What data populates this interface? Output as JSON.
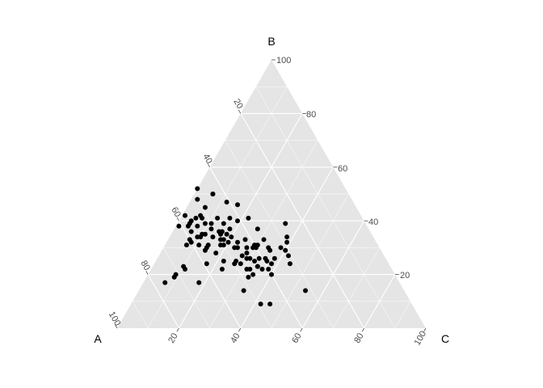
{
  "chart_data": {
    "type": "scatter",
    "subtype": "ternary",
    "axes": {
      "A": {
        "label": "A"
      },
      "B": {
        "label": "B"
      },
      "C": {
        "label": "C"
      }
    },
    "ticks": [
      20,
      40,
      60,
      80,
      100
    ],
    "grid_step": 10,
    "grid": true,
    "colors": {
      "panel": "#e5e5e5",
      "grid": "#ffffff",
      "point": "#000000"
    },
    "points": [
      [
        76,
        17,
        7
      ],
      [
        58,
        31,
        11
      ],
      [
        62,
        31,
        7
      ],
      [
        48,
        52,
        0
      ],
      [
        50,
        48,
        2
      ],
      [
        44,
        50,
        6
      ],
      [
        44,
        50,
        6
      ],
      [
        57,
        39,
        4
      ],
      [
        56,
        40,
        4
      ],
      [
        49,
        45,
        6
      ],
      [
        52,
        41,
        7
      ],
      [
        41,
        47,
        12
      ],
      [
        38,
        46,
        16
      ],
      [
        60,
        33,
        7
      ],
      [
        60,
        32,
        8
      ],
      [
        57,
        34,
        9
      ],
      [
        56,
        34,
        10
      ],
      [
        55,
        35,
        10
      ],
      [
        54,
        35,
        11
      ],
      [
        52,
        34,
        14
      ],
      [
        49,
        36,
        15
      ],
      [
        48,
        36,
        16
      ],
      [
        49,
        35,
        16
      ],
      [
        47,
        35,
        18
      ],
      [
        46,
        34,
        20
      ],
      [
        50,
        33,
        17
      ],
      [
        49,
        33,
        18
      ],
      [
        48,
        32,
        20
      ],
      [
        51,
        31,
        18
      ],
      [
        55,
        31,
        14
      ],
      [
        56,
        30,
        14
      ],
      [
        57,
        29,
        14
      ],
      [
        46,
        30,
        24
      ],
      [
        43,
        30,
        27
      ],
      [
        41,
        30,
        29
      ],
      [
        40,
        30,
        30
      ],
      [
        40,
        31,
        29
      ],
      [
        39,
        31,
        30
      ],
      [
        36,
        30,
        34
      ],
      [
        46,
        27,
        27
      ],
      [
        45,
        26,
        29
      ],
      [
        41,
        26,
        33
      ],
      [
        39,
        26,
        35
      ],
      [
        36,
        26,
        38
      ],
      [
        31,
        27,
        42
      ],
      [
        31,
        29,
        40
      ],
      [
        32,
        30,
        38
      ],
      [
        29,
        32,
        39
      ],
      [
        28,
        34,
        38
      ],
      [
        26,
        39,
        35
      ],
      [
        42,
        33,
        25
      ],
      [
        36,
        37,
        27
      ],
      [
        41,
        40,
        19
      ],
      [
        43,
        41,
        16
      ],
      [
        47,
        41,
        12
      ],
      [
        54,
        41,
        5
      ],
      [
        58,
        38,
        4
      ],
      [
        58,
        36,
        6
      ],
      [
        52,
        39,
        9
      ],
      [
        50,
        39,
        11
      ],
      [
        46,
        39,
        15
      ],
      [
        37,
        41,
        22
      ],
      [
        45,
        37,
        18
      ],
      [
        45,
        32,
        23
      ],
      [
        59,
        24,
        17
      ],
      [
        53,
        25,
        22
      ],
      [
        50,
        24,
        26
      ],
      [
        48,
        24,
        28
      ],
      [
        46,
        22,
        32
      ],
      [
        42,
        22,
        36
      ],
      [
        47,
        22,
        31
      ],
      [
        55,
        22,
        23
      ],
      [
        48,
        19,
        33
      ],
      [
        46,
        20,
        34
      ],
      [
        43,
        23,
        34
      ],
      [
        40,
        20,
        40
      ],
      [
        40,
        22,
        38
      ],
      [
        38,
        24,
        38
      ],
      [
        36,
        29,
        35
      ],
      [
        36,
        33,
        31
      ],
      [
        55,
        38,
        7
      ],
      [
        51,
        37,
        12
      ],
      [
        57,
        42,
        1
      ],
      [
        44,
        28,
        28
      ],
      [
        44,
        26,
        30
      ],
      [
        43,
        25,
        32
      ],
      [
        43,
        23,
        34
      ],
      [
        67,
        22,
        11
      ],
      [
        71,
        20,
        9
      ],
      [
        72,
        19,
        9
      ],
      [
        65,
        17,
        18
      ],
      [
        67,
        23,
        10
      ],
      [
        61,
        38,
        1
      ],
      [
        54,
        28,
        18
      ],
      [
        50,
        31,
        19
      ],
      [
        47,
        30,
        23
      ],
      [
        49,
        25,
        26
      ],
      [
        39,
        25,
        36
      ],
      [
        32,
        24,
        44
      ],
      [
        32,
        14,
        54
      ],
      [
        52,
        14,
        34
      ],
      [
        49,
        9,
        42
      ],
      [
        46,
        9,
        45
      ],
      [
        52,
        42,
        6
      ]
    ]
  }
}
